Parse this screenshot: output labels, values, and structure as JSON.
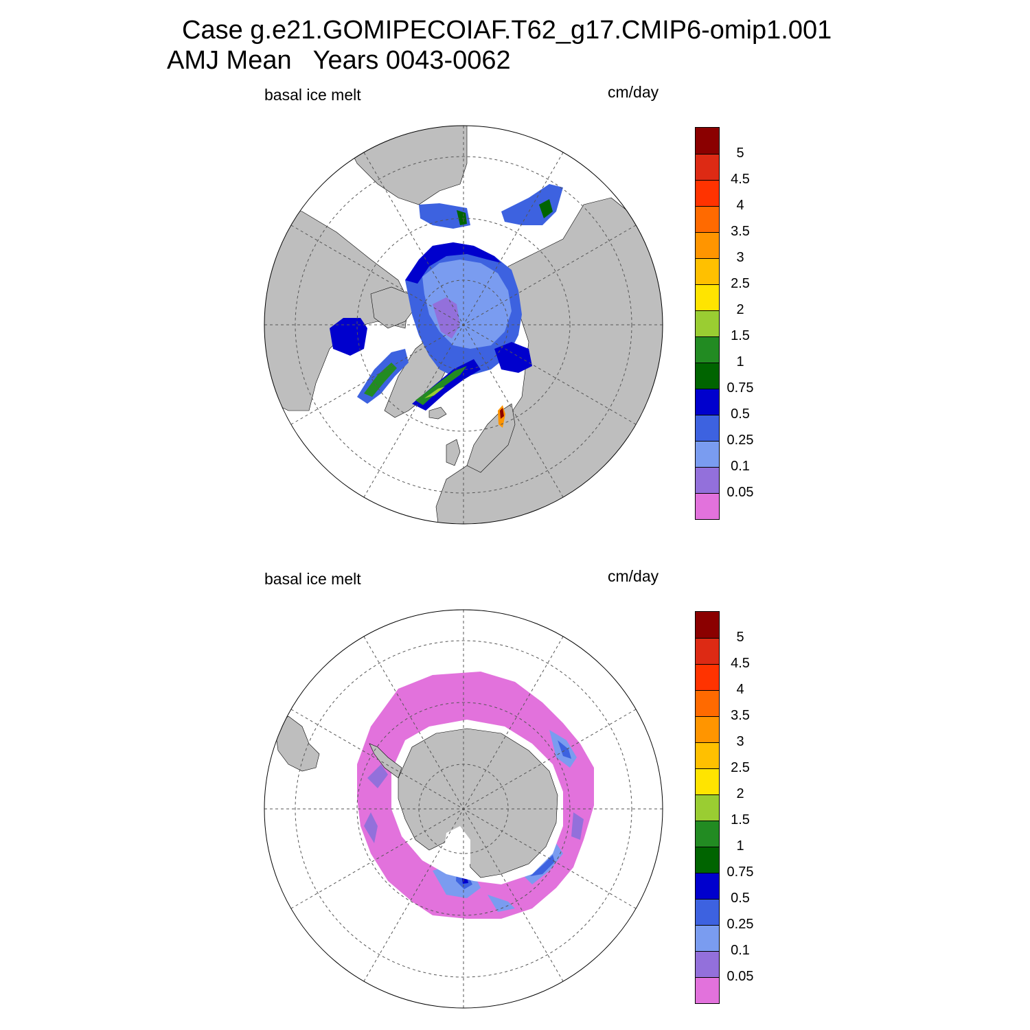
{
  "figure": {
    "title_line1": "Case g.e21.GOMIPECOIAF.T62_g17.CMIP6-omip1.001",
    "title_line2": "AMJ Mean   Years 0043-0062"
  },
  "colors": {
    "land": "#bebebe",
    "ocean_no_ice": "#ffffff",
    "levels": [
      "#e272dc",
      "#9370db",
      "#7a9cf0",
      "#3d62e0",
      "#0000cd",
      "#006400",
      "#228b22",
      "#9acd32",
      "#ffe400",
      "#ffc000",
      "#ff9500",
      "#ff6a00",
      "#ff3300",
      "#dd2a14",
      "#8b0000"
    ]
  },
  "panels": [
    {
      "id": "north",
      "label_left": "basal ice melt",
      "label_right": "cm/day",
      "projection": "north-polar-stereographic",
      "colorbar_labels": [
        "5",
        "4.5",
        "4",
        "3.5",
        "3",
        "2.5",
        "2",
        "1.5",
        "1",
        "0.75",
        "0.5",
        "0.25",
        "0.1",
        "0.05"
      ]
    },
    {
      "id": "south",
      "label_left": "basal ice melt",
      "label_right": "cm/day",
      "projection": "south-polar-stereographic",
      "colorbar_labels": [
        "5",
        "4.5",
        "4",
        "3.5",
        "3",
        "2.5",
        "2",
        "1.5",
        "1",
        "0.75",
        "0.5",
        "0.25",
        "0.1",
        "0.05"
      ]
    }
  ]
}
